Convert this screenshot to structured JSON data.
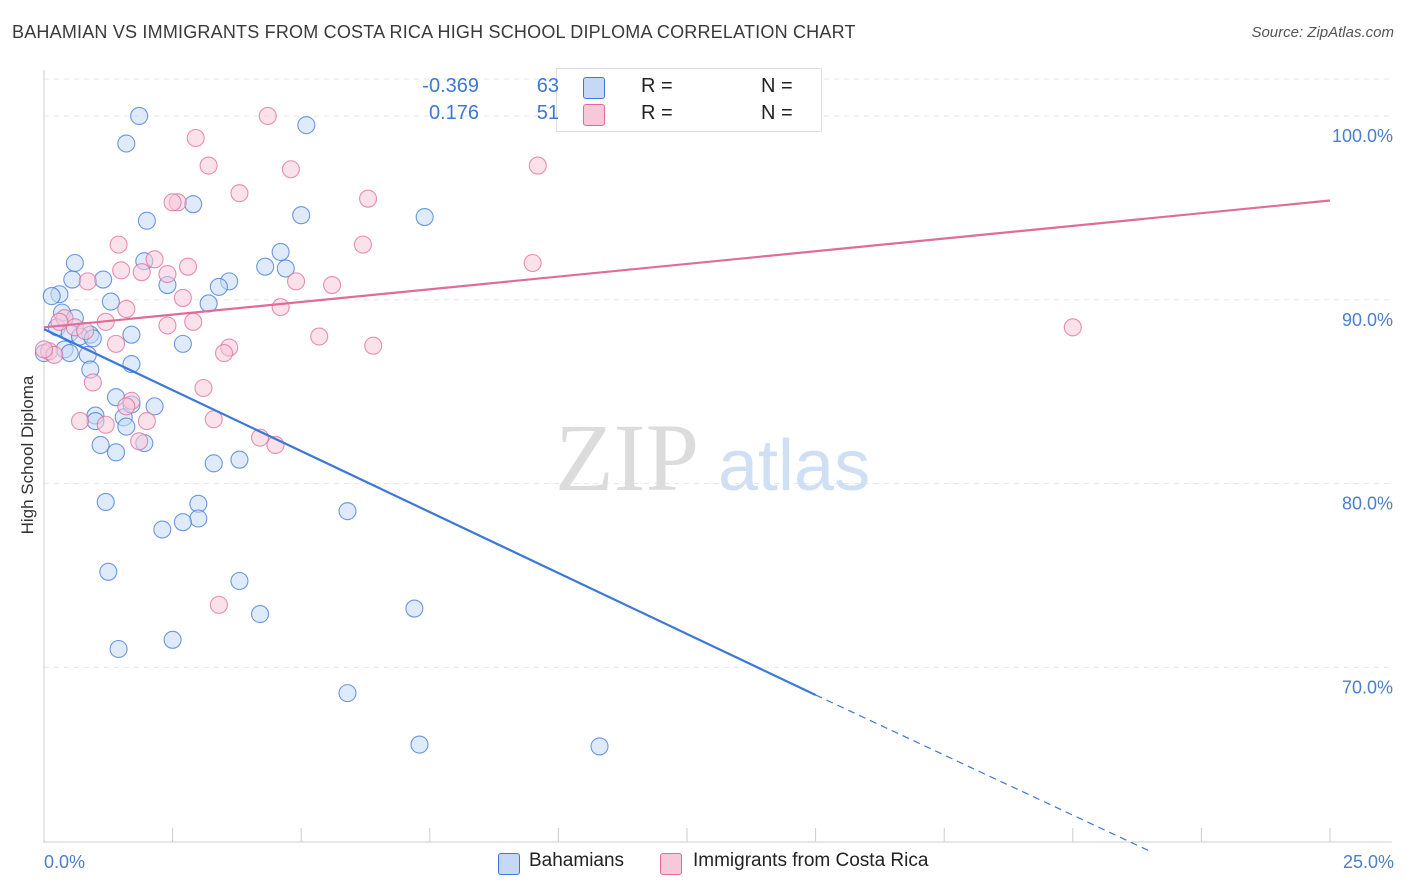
{
  "title": "BAHAMIAN VS IMMIGRANTS FROM COSTA RICA HIGH SCHOOL DIPLOMA CORRELATION CHART",
  "source": "Source: ZipAtlas.com",
  "watermark": {
    "zip": "ZIP",
    "atlas": "atlas"
  },
  "colors": {
    "blue": "#3d78d8",
    "blue_fill": "#c5d8f5",
    "pink": "#e06c99",
    "pink_fill": "#f7c9d8",
    "tick": "#4a7fd0"
  },
  "legend": {
    "rows": [
      {
        "r_label": "R =",
        "r_value": "-0.369",
        "n_label": "N =",
        "n_value": "63"
      },
      {
        "r_label": "R =",
        "r_value": "0.176",
        "n_label": "N =",
        "n_value": "51"
      }
    ]
  },
  "bottom_legend": [
    "Bahamians",
    "Immigrants from Costa Rica"
  ],
  "chart_data": {
    "type": "scatter",
    "title": "BAHAMIAN VS IMMIGRANTS FROM COSTA RICA HIGH SCHOOL DIPLOMA CORRELATION CHART",
    "xlabel": "",
    "ylabel": "High School Diploma",
    "xlim": [
      0,
      25
    ],
    "ylim": [
      60.5,
      102.5
    ],
    "x_tick_labels": [
      "0.0%",
      "25.0%"
    ],
    "y_ticks": [
      70,
      80,
      90,
      100
    ],
    "y_tick_labels": [
      "70.0%",
      "80.0%",
      "90.0%",
      "100.0%"
    ],
    "grid": true,
    "series": [
      {
        "name": "Bahamians",
        "color": "#3d78d8",
        "points": [
          [
            1.85,
            100.0
          ],
          [
            1.6,
            98.5
          ],
          [
            5.1,
            99.5
          ],
          [
            0.3,
            90.3
          ],
          [
            0.15,
            90.2
          ],
          [
            0.35,
            89.3
          ],
          [
            0.6,
            89.0
          ],
          [
            0.25,
            88.5
          ],
          [
            0.5,
            88.2
          ],
          [
            0.9,
            88.1
          ],
          [
            0.7,
            88.0
          ],
          [
            0.4,
            87.3
          ],
          [
            0.5,
            87.1
          ],
          [
            0.85,
            87.0
          ],
          [
            0.0,
            87.1
          ],
          [
            0.6,
            92.0
          ],
          [
            0.55,
            91.1
          ],
          [
            1.15,
            91.1
          ],
          [
            2.0,
            94.3
          ],
          [
            2.9,
            95.2
          ],
          [
            5.0,
            94.6
          ],
          [
            7.4,
            94.5
          ],
          [
            4.6,
            92.6
          ],
          [
            4.7,
            91.7
          ],
          [
            4.3,
            91.8
          ],
          [
            1.95,
            92.1
          ],
          [
            3.6,
            91.0
          ],
          [
            2.4,
            90.8
          ],
          [
            1.3,
            89.9
          ],
          [
            3.4,
            90.7
          ],
          [
            1.7,
            88.1
          ],
          [
            2.7,
            87.6
          ],
          [
            1.7,
            86.5
          ],
          [
            0.9,
            86.2
          ],
          [
            1.4,
            84.7
          ],
          [
            2.15,
            84.2
          ],
          [
            1.0,
            83.7
          ],
          [
            1.55,
            83.6
          ],
          [
            1.7,
            84.3
          ],
          [
            1.0,
            83.4
          ],
          [
            1.6,
            83.1
          ],
          [
            1.1,
            82.1
          ],
          [
            1.4,
            81.7
          ],
          [
            1.95,
            82.2
          ],
          [
            3.3,
            81.1
          ],
          [
            3.8,
            81.3
          ],
          [
            1.2,
            79.0
          ],
          [
            3.0,
            78.9
          ],
          [
            5.9,
            78.5
          ],
          [
            3.0,
            78.1
          ],
          [
            2.7,
            77.9
          ],
          [
            2.3,
            77.5
          ],
          [
            1.25,
            75.2
          ],
          [
            3.8,
            74.7
          ],
          [
            4.2,
            72.9
          ],
          [
            7.2,
            73.2
          ],
          [
            2.5,
            71.5
          ],
          [
            1.45,
            71.0
          ],
          [
            5.9,
            68.6
          ],
          [
            7.3,
            65.8
          ],
          [
            10.8,
            65.7
          ],
          [
            3.2,
            89.8
          ],
          [
            0.95,
            87.9
          ]
        ],
        "trend": {
          "x": [
            0,
            15.0,
            21.5
          ],
          "y": [
            88.4,
            68.5,
            60.0
          ],
          "solid_until": 15.0
        }
      },
      {
        "name": "Immigrants from Costa Rica",
        "color": "#e06c99",
        "points": [
          [
            4.35,
            100.0
          ],
          [
            2.95,
            98.8
          ],
          [
            3.2,
            97.3
          ],
          [
            4.8,
            97.1
          ],
          [
            9.6,
            97.3
          ],
          [
            3.8,
            95.8
          ],
          [
            2.6,
            95.3
          ],
          [
            2.5,
            95.3
          ],
          [
            6.3,
            95.5
          ],
          [
            1.45,
            93.0
          ],
          [
            6.2,
            93.0
          ],
          [
            9.5,
            92.0
          ],
          [
            2.15,
            92.2
          ],
          [
            2.8,
            91.8
          ],
          [
            1.5,
            91.6
          ],
          [
            1.9,
            91.5
          ],
          [
            2.4,
            91.4
          ],
          [
            0.85,
            91.0
          ],
          [
            4.9,
            91.0
          ],
          [
            5.6,
            90.8
          ],
          [
            2.7,
            90.1
          ],
          [
            1.6,
            89.5
          ],
          [
            4.6,
            89.6
          ],
          [
            0.4,
            89.0
          ],
          [
            1.2,
            88.8
          ],
          [
            2.9,
            88.8
          ],
          [
            2.4,
            88.6
          ],
          [
            0.6,
            88.5
          ],
          [
            0.8,
            88.3
          ],
          [
            5.35,
            88.0
          ],
          [
            20.0,
            88.5
          ],
          [
            1.4,
            87.6
          ],
          [
            3.6,
            87.4
          ],
          [
            6.4,
            87.5
          ],
          [
            3.5,
            87.1
          ],
          [
            0.1,
            87.2
          ],
          [
            0.2,
            87.0
          ],
          [
            0.95,
            85.5
          ],
          [
            3.1,
            85.2
          ],
          [
            1.7,
            84.5
          ],
          [
            0.7,
            83.4
          ],
          [
            1.2,
            83.2
          ],
          [
            2.0,
            83.4
          ],
          [
            3.3,
            83.5
          ],
          [
            4.2,
            82.5
          ],
          [
            4.5,
            82.1
          ],
          [
            1.85,
            82.3
          ],
          [
            3.4,
            73.4
          ],
          [
            0.0,
            87.3
          ],
          [
            0.3,
            88.8
          ],
          [
            1.6,
            84.2
          ]
        ],
        "trend": {
          "x": [
            0,
            25.0
          ],
          "y": [
            88.5,
            95.4
          ],
          "solid_until": 25.0
        }
      }
    ]
  }
}
